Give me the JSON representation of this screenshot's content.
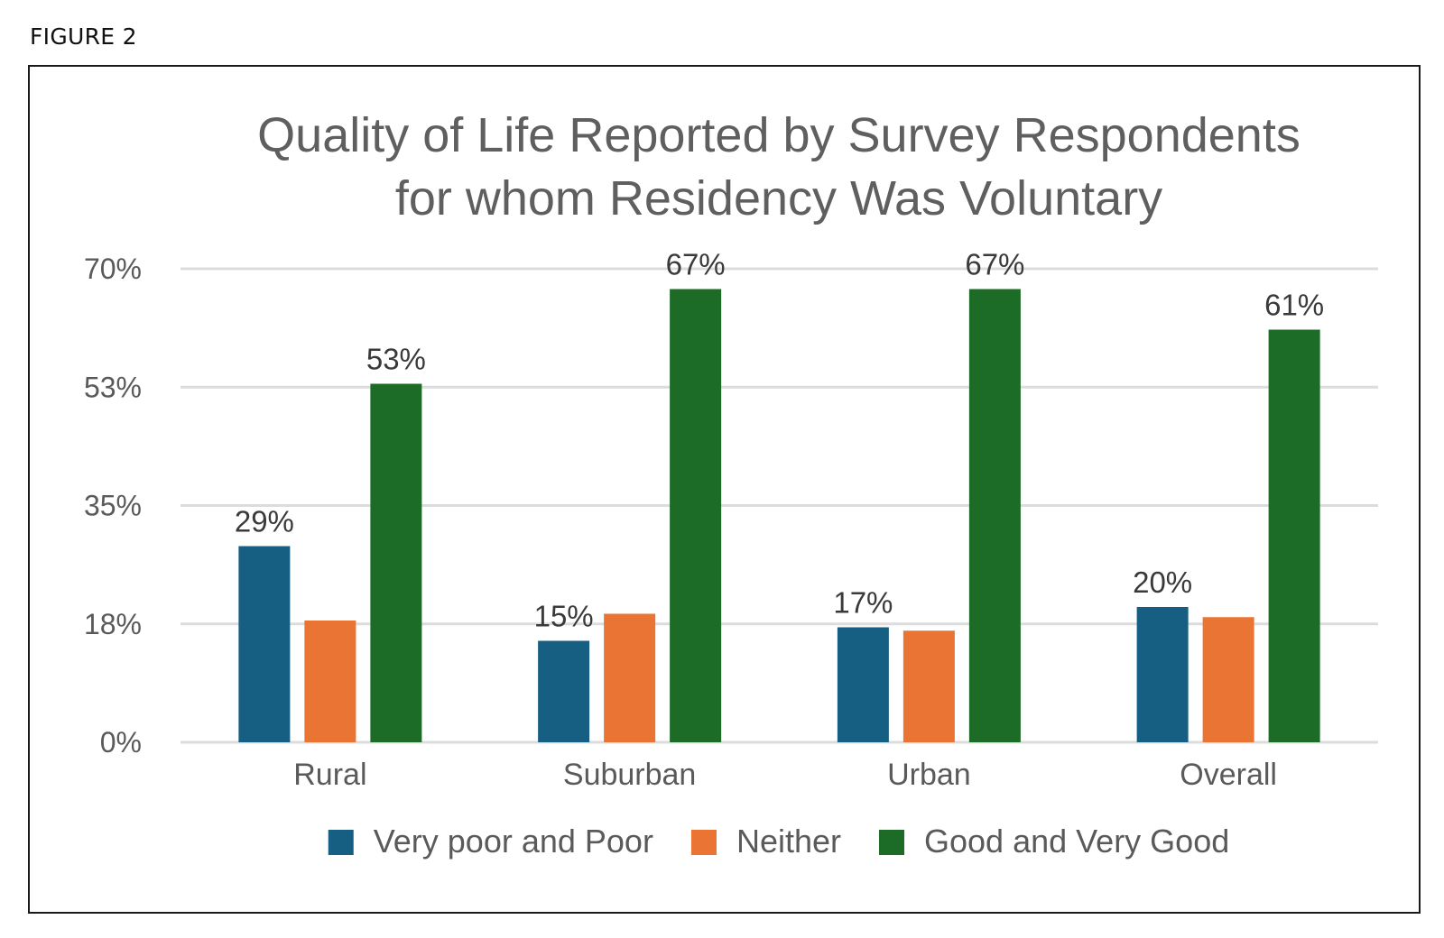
{
  "figure_label": "FIGURE 2",
  "colors": {
    "very_poor": "#175f82",
    "neither": "#ea7433",
    "good": "#1c6b26",
    "grid": "#dcdcdc"
  },
  "chart_data": {
    "type": "bar",
    "title_lines": [
      "Quality of Life Reported by Survey Respondents",
      "for whom Residency Was Voluntary"
    ],
    "categories": [
      "Rural",
      "Suburban",
      "Urban",
      "Overall"
    ],
    "ylim": [
      0,
      70
    ],
    "yticks": [
      0,
      17.5,
      35,
      52.5,
      70
    ],
    "ytick_labels": [
      "0%",
      "18%",
      "35%",
      "53%",
      "70%"
    ],
    "grid": true,
    "legend_position": "bottom",
    "series": [
      {
        "name": "Very poor and Poor",
        "color_key": "very_poor",
        "values": [
          29,
          15,
          17,
          20
        ],
        "labels": [
          "29%",
          "15%",
          "17%",
          "20%"
        ]
      },
      {
        "name": "Neither",
        "color_key": "neither",
        "values": [
          18,
          19,
          16.5,
          18.5
        ],
        "labels": [
          null,
          null,
          null,
          null
        ]
      },
      {
        "name": "Good and Very Good",
        "color_key": "good",
        "values": [
          53,
          67,
          67,
          61
        ],
        "labels": [
          "53%",
          "67%",
          "67%",
          "61%"
        ]
      }
    ]
  }
}
